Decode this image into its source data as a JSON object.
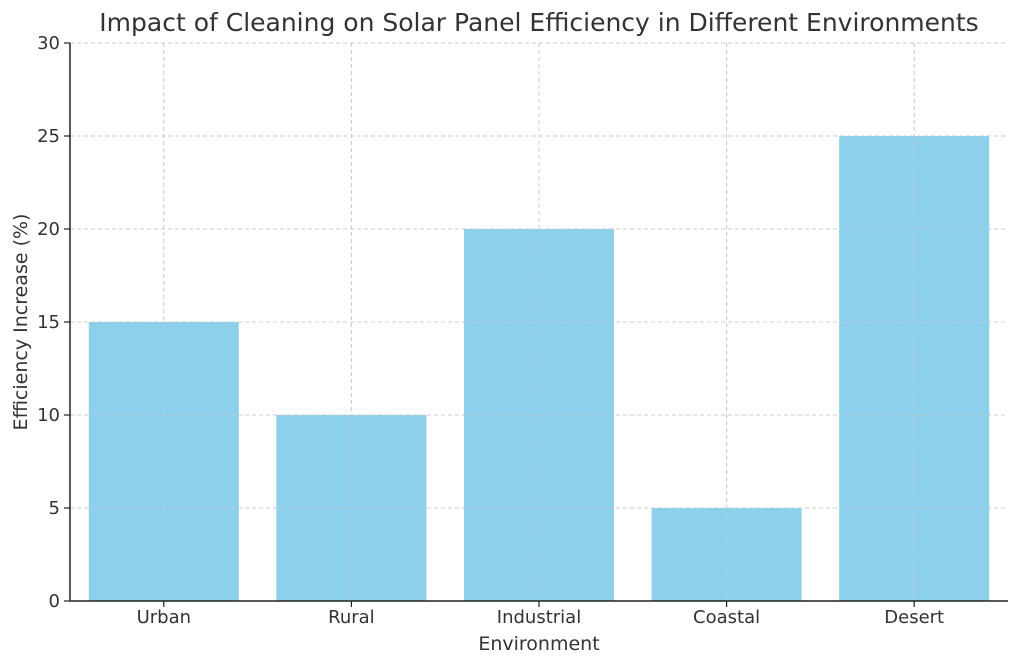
{
  "chart_data": {
    "type": "bar",
    "title": "Impact of Cleaning on Solar Panel Efficiency in Different Environments",
    "xlabel": "Environment",
    "ylabel": "Efficiency Increase (%)",
    "categories": [
      "Urban",
      "Rural",
      "Industrial",
      "Coastal",
      "Desert"
    ],
    "values": [
      15,
      10,
      20,
      5,
      25
    ],
    "ylim": [
      0,
      30
    ],
    "yticks": [
      0,
      5,
      10,
      15,
      20,
      25,
      30
    ],
    "grid": true,
    "bar_color": "#87CEEB"
  }
}
